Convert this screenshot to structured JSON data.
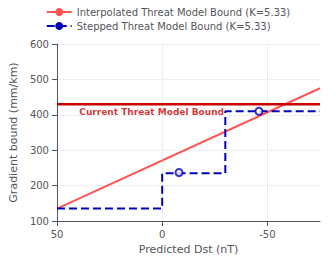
{
  "chart_data": {
    "type": "line",
    "xlabel": "Predicted Dst (nT)",
    "ylabel": "Gradient bound (mm/km)",
    "xlim": [
      50,
      -75
    ],
    "ylim": [
      100,
      600
    ],
    "xticks": [
      50,
      0,
      -50
    ],
    "yticks": [
      100,
      200,
      300,
      400,
      500,
      600
    ],
    "grid": true,
    "legend": "upper center",
    "series": [
      {
        "name": "Interpolated Threat Model Bound (K=5.33)",
        "type": "line",
        "color": "#ff5555",
        "line_style": "solid",
        "x": [
          50,
          -75
        ],
        "values": [
          135,
          475
        ]
      },
      {
        "name": "Stepped Threat Model Bound (K=5.33)",
        "type": "line",
        "color": "#0000bb",
        "line_style": "dashed",
        "x": [
          50,
          0,
          0,
          -30,
          -30,
          -75
        ],
        "values": [
          135,
          135,
          235,
          235,
          410,
          410
        ]
      },
      {
        "type": "scatter",
        "color": "#0000bb",
        "marker": "circle",
        "x": [
          -8,
          -46
        ],
        "values": [
          237,
          410
        ]
      },
      {
        "type": "line",
        "color": "#cc0000",
        "line_style": "solid",
        "x": [
          50,
          -75
        ],
        "values": [
          430,
          430
        ]
      }
    ],
    "annotations": [
      {
        "text": "Current Threat Model Bound",
        "x": 5,
        "y": 420,
        "color": "#cc0000"
      }
    ]
  }
}
